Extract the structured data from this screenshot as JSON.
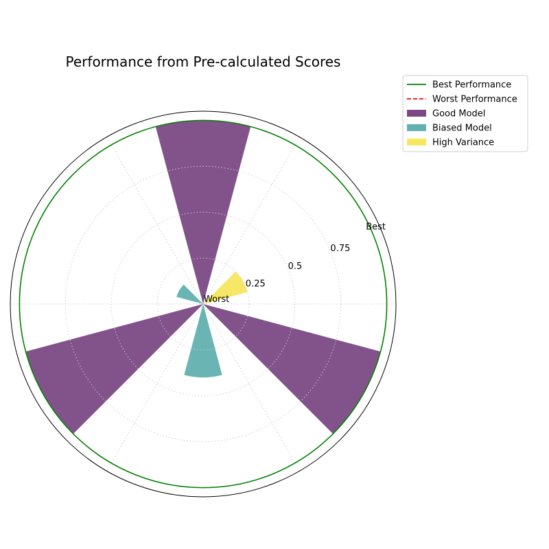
{
  "chart_data": {
    "type": "polar-bar",
    "title": "Performance from Pre-calculated Scores",
    "radial_ticks": [
      {
        "value": 0.25,
        "label": "0.25"
      },
      {
        "value": 0.5,
        "label": "0.5"
      },
      {
        "value": 0.75,
        "label": "0.75"
      }
    ],
    "radial_end_labels": {
      "inner": "Worst",
      "outer": "Best"
    },
    "rlim": [
      0,
      1.05
    ],
    "grid": true,
    "legend_position": "outside-top-right",
    "reference_lines": [
      {
        "name": "Best Performance",
        "value": 1.0,
        "color": "#008000",
        "style": "solid"
      },
      {
        "name": "Worst Performance",
        "value": 0.0,
        "color": "#ff0000",
        "style": "dashed"
      }
    ],
    "series": [
      {
        "name": "Good Model",
        "color": "#7b4a85",
        "bars": [
          {
            "angle_deg": 90,
            "width_deg": 30,
            "value": 1.0
          },
          {
            "angle_deg": 210,
            "width_deg": 30,
            "value": 1.0
          },
          {
            "angle_deg": 330,
            "width_deg": 30,
            "value": 1.0
          }
        ]
      },
      {
        "name": "Biased Model",
        "color": "#62b1b0",
        "bars": [
          {
            "angle_deg": 150,
            "width_deg": 30,
            "value": 0.15
          },
          {
            "angle_deg": 270,
            "width_deg": 30,
            "value": 0.4
          }
        ]
      },
      {
        "name": "High Variance",
        "color": "#f7e65f",
        "bars": [
          {
            "angle_deg": 30,
            "width_deg": 30,
            "value": 0.25
          }
        ]
      }
    ]
  }
}
